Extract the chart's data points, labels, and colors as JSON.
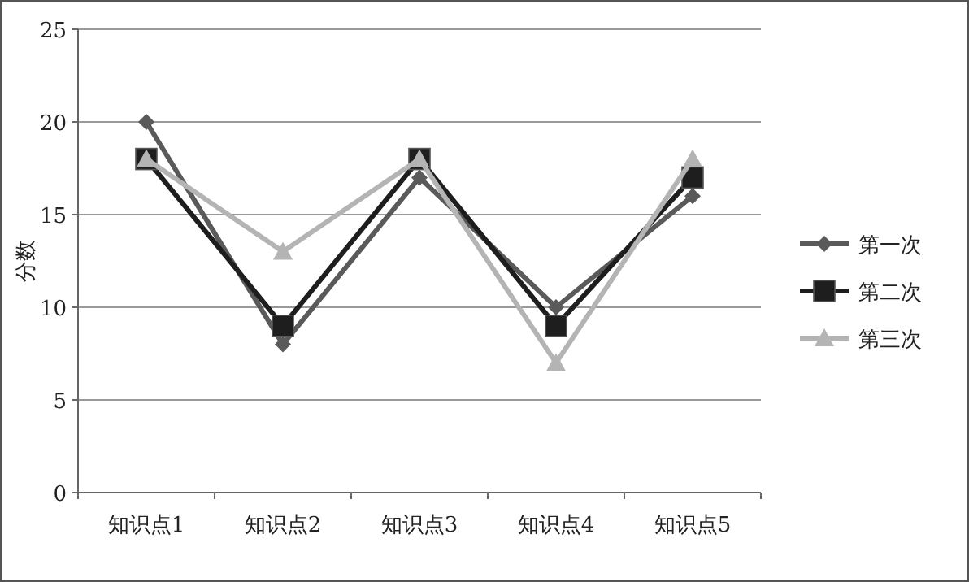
{
  "chart_data": {
    "type": "line",
    "ylabel": "分数",
    "categories": [
      "知识点1",
      "知识点2",
      "知识点3",
      "知识点4",
      "知识点5"
    ],
    "series": [
      {
        "name": "第一次",
        "color": "#5a5a5a",
        "marker": "diamond",
        "values": [
          20,
          8,
          17,
          10,
          16
        ]
      },
      {
        "name": "第二次",
        "color": "#1e1e1e",
        "marker": "square",
        "values": [
          18,
          9,
          18,
          9,
          17
        ]
      },
      {
        "name": "第三次",
        "color": "#b4b4b4",
        "marker": "triangle",
        "values": [
          18,
          13,
          18,
          7,
          18
        ]
      }
    ],
    "ylim": [
      0,
      25
    ],
    "yticks": [
      0,
      5,
      10,
      15,
      20,
      25
    ],
    "grid": "y",
    "legend": "right",
    "line_style": "solid"
  }
}
